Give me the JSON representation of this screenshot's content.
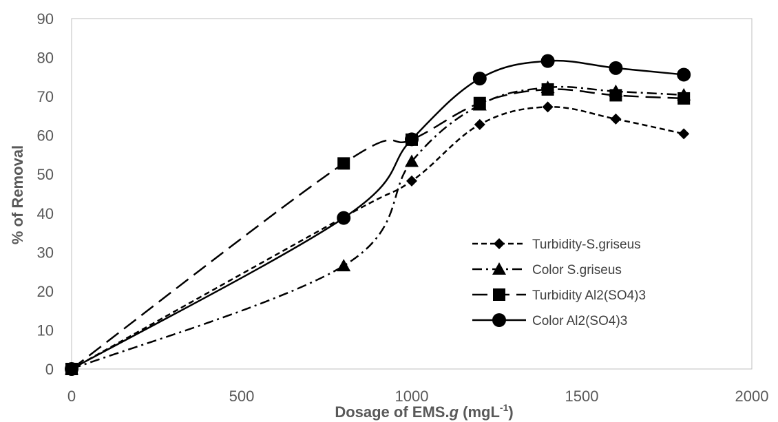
{
  "chart_data": {
    "type": "scatter",
    "title": "",
    "xlabel": "Dosage of EMS.",
    "xlabel_italic": "g",
    "xlabel_units_prefix": "(mgL",
    "xlabel_units_sup": "-1",
    "xlabel_units_suffix": ")",
    "ylabel": "% of  Removal",
    "xlim": [
      0,
      2000
    ],
    "ylim": [
      0,
      90
    ],
    "x_ticks": [
      "0",
      "500",
      "1000",
      "1500",
      "2000"
    ],
    "y_ticks": [
      "0",
      "10",
      "20",
      "30",
      "40",
      "50",
      "60",
      "70",
      "80",
      "90"
    ],
    "grid": false,
    "legend_position": "right",
    "series": [
      {
        "name": "Turbidity-S.griseus",
        "marker": "diamond",
        "line_style": "short-dash",
        "x": [
          0,
          800,
          1000,
          1200,
          1400,
          1600,
          1800
        ],
        "y": [
          0,
          39,
          48.3,
          62.8,
          67.3,
          64.2,
          60.4
        ]
      },
      {
        "name": "Color S.griseus",
        "marker": "triangle",
        "line_style": "dash-dot",
        "x": [
          0,
          800,
          1000,
          1200,
          1400,
          1600,
          1800
        ],
        "y": [
          0,
          26.5,
          53.3,
          67.8,
          72.3,
          71.3,
          70.4
        ]
      },
      {
        "name": "Turbidity Al2(SO4)3",
        "marker": "square",
        "line_style": "long-dash",
        "x": [
          0,
          800,
          1000,
          1200,
          1400,
          1600,
          1800
        ],
        "y": [
          0,
          52.8,
          58.9,
          68.3,
          71.8,
          70.3,
          69.5
        ]
      },
      {
        "name": "Color Al2(SO4)3",
        "marker": "circle",
        "line_style": "solid",
        "x": [
          0,
          800,
          1000,
          1200,
          1400,
          1600,
          1800
        ],
        "y": [
          0,
          38.8,
          59,
          74.6,
          79.1,
          77.3,
          75.6
        ]
      }
    ],
    "colors": {
      "line": "#000000",
      "tick_text": "#595959",
      "frame": "#bfbfbf"
    }
  }
}
